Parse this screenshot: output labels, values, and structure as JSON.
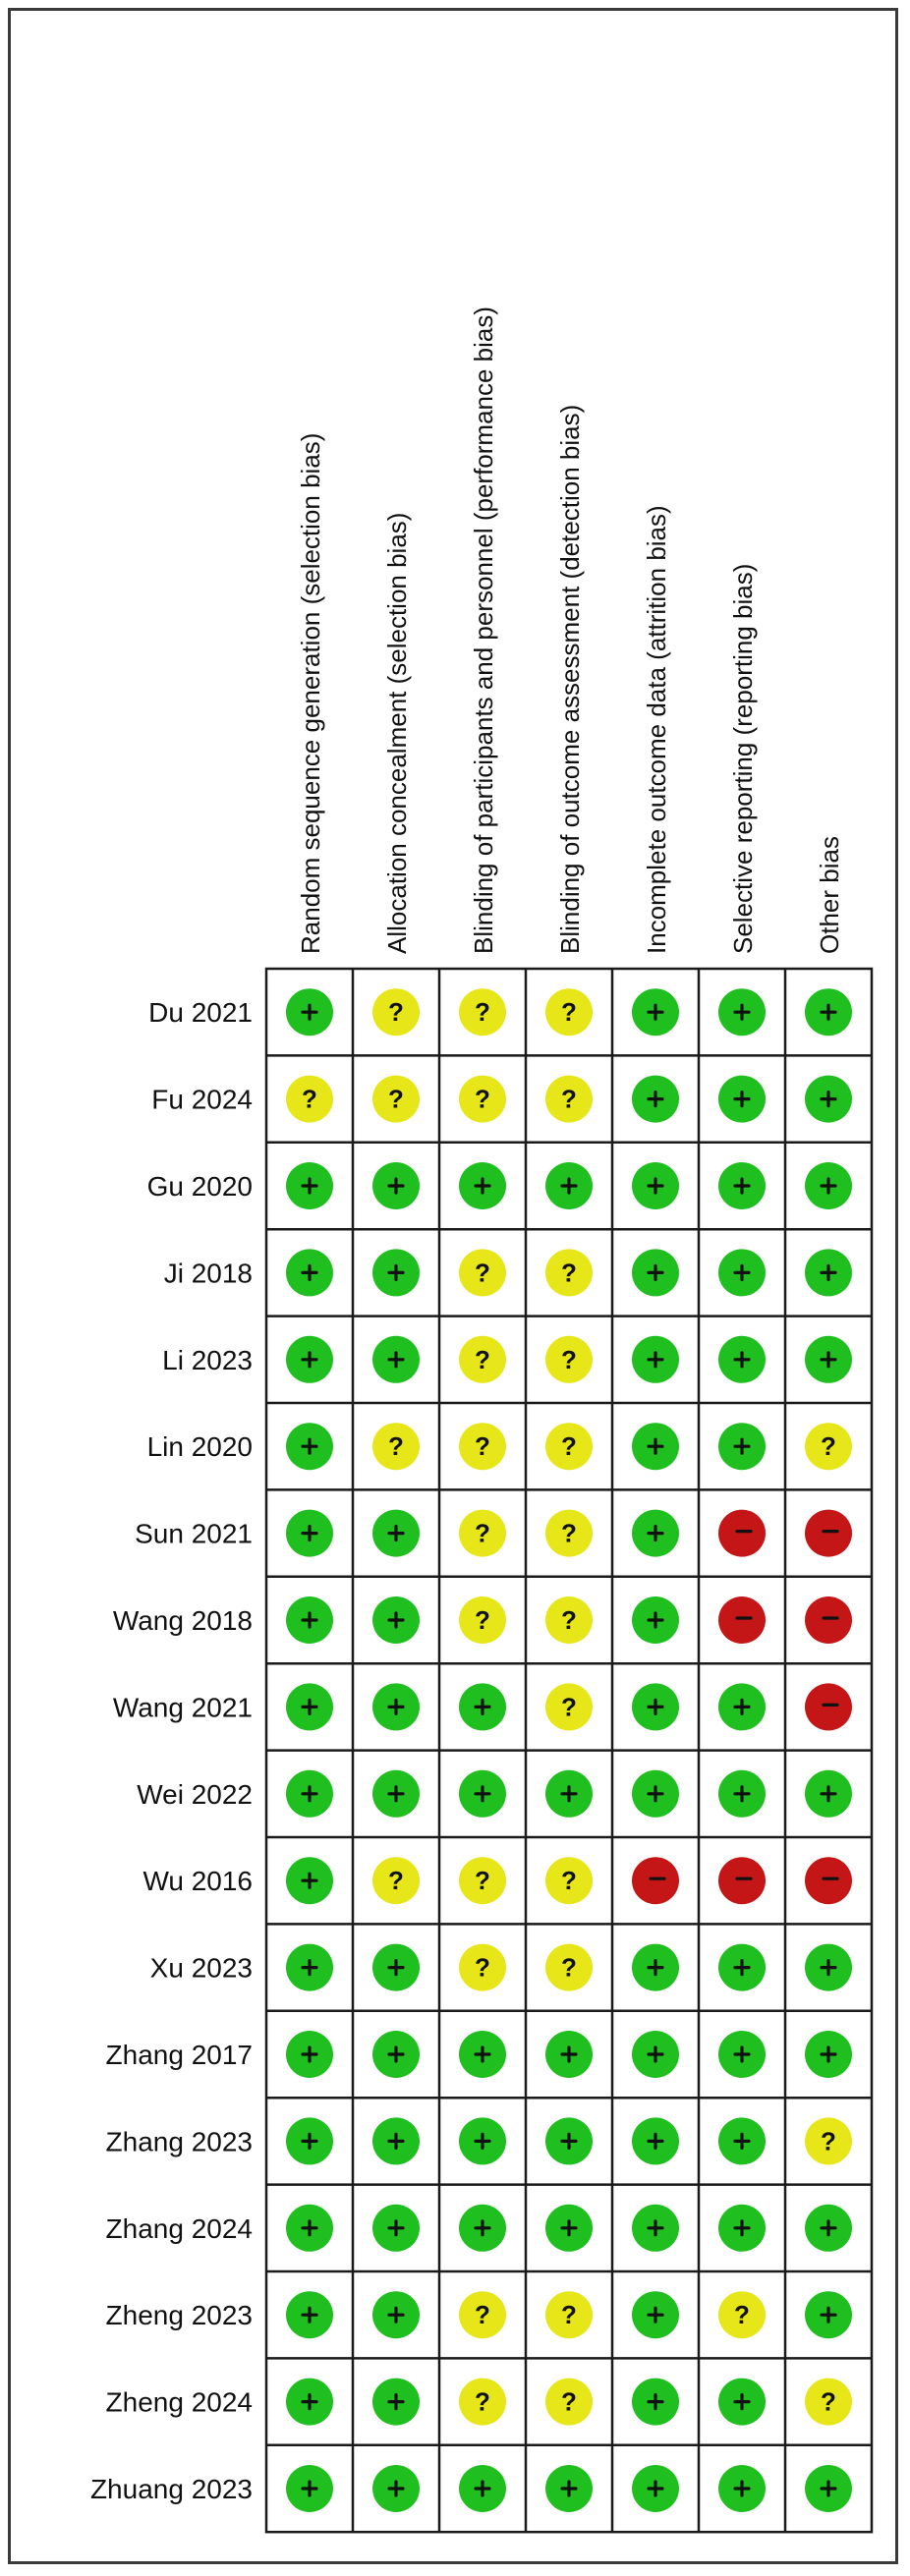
{
  "chart_data": {
    "type": "table",
    "title": "",
    "domains": [
      "Random sequence generation (selection bias)",
      "Allocation concealment (selection bias)",
      "Blinding of participants and personnel (performance bias)",
      "Blinding of outcome assessment (detection bias)",
      "Incomplete outcome data (attrition bias)",
      "Selective reporting (reporting bias)",
      "Other bias"
    ],
    "studies": [
      {
        "name": "Du 2021",
        "ratings": [
          "+",
          "?",
          "?",
          "?",
          "+",
          "+",
          "+"
        ]
      },
      {
        "name": "Fu 2024",
        "ratings": [
          "?",
          "?",
          "?",
          "?",
          "+",
          "+",
          "+"
        ]
      },
      {
        "name": "Gu 2020",
        "ratings": [
          "+",
          "+",
          "+",
          "+",
          "+",
          "+",
          "+"
        ]
      },
      {
        "name": "Ji 2018",
        "ratings": [
          "+",
          "+",
          "?",
          "?",
          "+",
          "+",
          "+"
        ]
      },
      {
        "name": "Li 2023",
        "ratings": [
          "+",
          "+",
          "?",
          "?",
          "+",
          "+",
          "+"
        ]
      },
      {
        "name": "Lin 2020",
        "ratings": [
          "+",
          "?",
          "?",
          "?",
          "+",
          "+",
          "?"
        ]
      },
      {
        "name": "Sun 2021",
        "ratings": [
          "+",
          "+",
          "?",
          "?",
          "+",
          "-",
          "-"
        ]
      },
      {
        "name": "Wang 2018",
        "ratings": [
          "+",
          "+",
          "?",
          "?",
          "+",
          "-",
          "-"
        ]
      },
      {
        "name": "Wang 2021",
        "ratings": [
          "+",
          "+",
          "+",
          "?",
          "+",
          "+",
          "-"
        ]
      },
      {
        "name": "Wei 2022",
        "ratings": [
          "+",
          "+",
          "+",
          "+",
          "+",
          "+",
          "+"
        ]
      },
      {
        "name": "Wu 2016",
        "ratings": [
          "+",
          "?",
          "?",
          "?",
          "-",
          "-",
          "-"
        ]
      },
      {
        "name": "Xu 2023",
        "ratings": [
          "+",
          "+",
          "?",
          "?",
          "+",
          "+",
          "+"
        ]
      },
      {
        "name": "Zhang 2017",
        "ratings": [
          "+",
          "+",
          "+",
          "+",
          "+",
          "+",
          "+"
        ]
      },
      {
        "name": "Zhang 2023",
        "ratings": [
          "+",
          "+",
          "+",
          "+",
          "+",
          "+",
          "?"
        ]
      },
      {
        "name": "Zhang 2024",
        "ratings": [
          "+",
          "+",
          "+",
          "+",
          "+",
          "+",
          "+"
        ]
      },
      {
        "name": "Zheng 2023",
        "ratings": [
          "+",
          "+",
          "?",
          "?",
          "+",
          "?",
          "+"
        ]
      },
      {
        "name": "Zheng 2024",
        "ratings": [
          "+",
          "+",
          "?",
          "?",
          "+",
          "+",
          "?"
        ]
      },
      {
        "name": "Zhuang 2023",
        "ratings": [
          "+",
          "+",
          "+",
          "+",
          "+",
          "+",
          "+"
        ]
      }
    ],
    "colors": {
      "low": "#1fbf1f",
      "unclear": "#e6e619",
      "high": "#c41616",
      "grid": "#1a1a1a",
      "symbol": "#111111"
    }
  }
}
